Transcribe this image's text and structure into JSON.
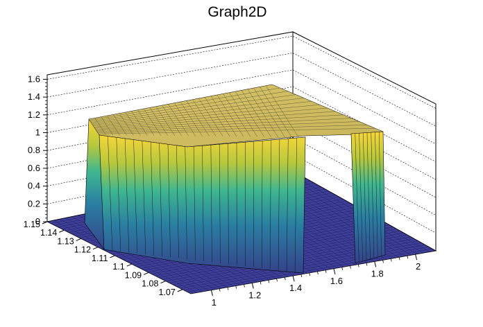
{
  "chart_data": {
    "type": "surface",
    "title": "Graph2D",
    "xlabel": "",
    "ylabel": "",
    "zlabel": "",
    "x_ticks": [
      "1",
      "1.2",
      "1.4",
      "1.6",
      "1.8",
      "2"
    ],
    "y_ticks": [
      "1.07",
      "1.08",
      "1.09",
      "1.1",
      "1.11",
      "1.12",
      "1.13",
      "1.14",
      "1.15"
    ],
    "z_ticks": [
      "0",
      "0.2",
      "0.4",
      "0.6",
      "0.8",
      "1",
      "1.2",
      "1.4",
      "1.6"
    ],
    "xlim": [
      0.9,
      2.1
    ],
    "ylim": [
      1.065,
      1.15
    ],
    "zlim": [
      0,
      1.65
    ],
    "grid": true,
    "palette": "viridis-like (blue to yellow)",
    "surface_height_peak": 1.2,
    "surface_height_front_edge": 1.0,
    "front_wall_x_range": [
      1.2,
      1.5
    ],
    "back_wall_x_range": [
      1.0,
      1.05
    ],
    "right_wall_x_range": [
      1.8,
      1.9
    ],
    "colors": {
      "low": "#352a87",
      "mid": "#21a8a0",
      "high": "#f9d636"
    }
  }
}
